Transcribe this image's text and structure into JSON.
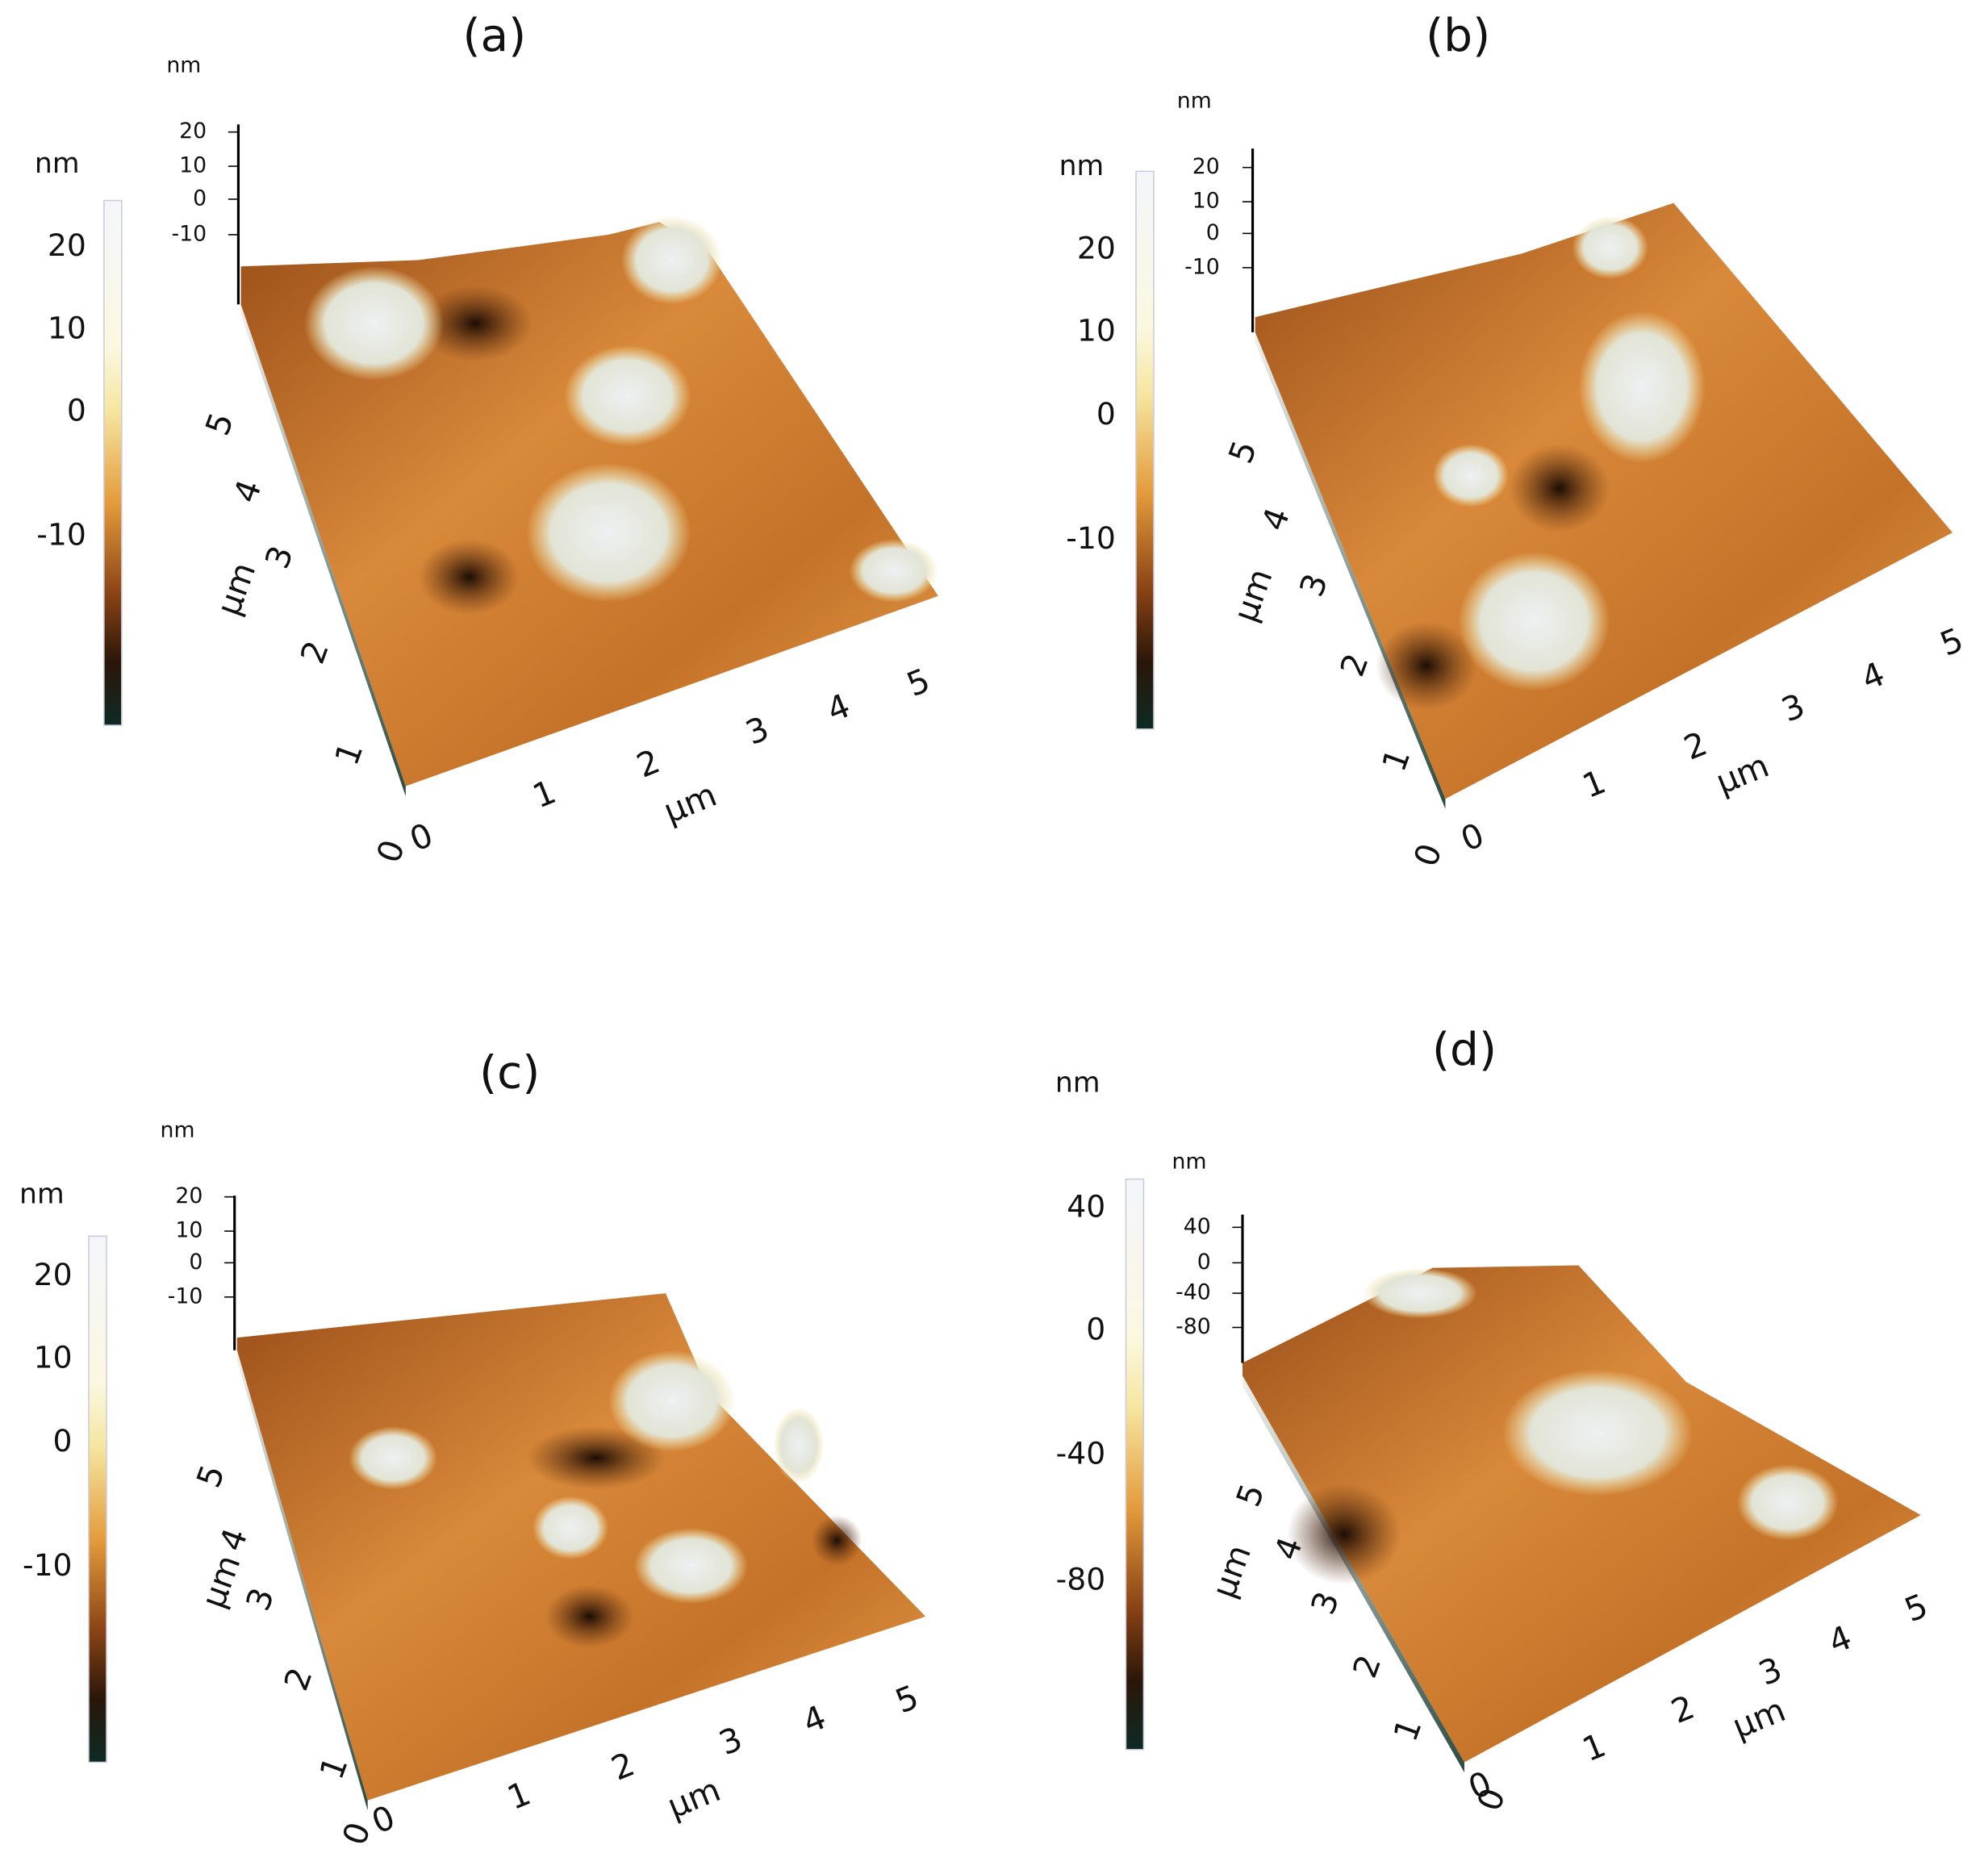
{
  "panels": [
    {
      "label": "(a)",
      "colorbar_unit": "nm",
      "colorbar_ticks": [
        20,
        10,
        0,
        -10
      ],
      "z_unit": "nm",
      "z_ticks": [
        20,
        10,
        0,
        -10
      ],
      "y_unit": "µm",
      "y_ticks": [
        0,
        1,
        2,
        3,
        4,
        5
      ],
      "x_unit": "µm",
      "x_ticks": [
        0,
        1,
        2,
        3,
        4,
        5
      ]
    },
    {
      "label": "(b)",
      "colorbar_unit": "nm",
      "colorbar_ticks": [
        20,
        10,
        0,
        -10
      ],
      "z_unit": "nm",
      "z_ticks": [
        20,
        10,
        0,
        -10
      ],
      "y_unit": "µm",
      "y_ticks": [
        0,
        1,
        2,
        3,
        4,
        5
      ],
      "x_unit": "µm",
      "x_ticks": [
        0,
        1,
        2,
        3,
        4,
        5
      ]
    },
    {
      "label": "(c)",
      "colorbar_unit": "nm",
      "colorbar_ticks": [
        20,
        10,
        0,
        -10
      ],
      "z_unit": "nm",
      "z_ticks": [
        20,
        10,
        0,
        -10
      ],
      "y_unit": "µm",
      "y_ticks": [
        0,
        1,
        2,
        3,
        4,
        5
      ],
      "x_unit": "µm",
      "x_ticks": [
        0,
        1,
        2,
        3,
        4,
        5
      ]
    },
    {
      "label": "(d)",
      "colorbar_unit": "nm",
      "colorbar_ticks": [
        40,
        0,
        -40,
        -80
      ],
      "z_unit": "nm",
      "z_ticks": [
        40,
        0,
        -40,
        -80
      ],
      "y_unit": "µm",
      "y_ticks": [
        0,
        1,
        2,
        3,
        4,
        5
      ],
      "x_unit": "µm",
      "x_ticks": [
        0,
        1,
        2,
        3,
        4,
        5
      ]
    }
  ]
}
